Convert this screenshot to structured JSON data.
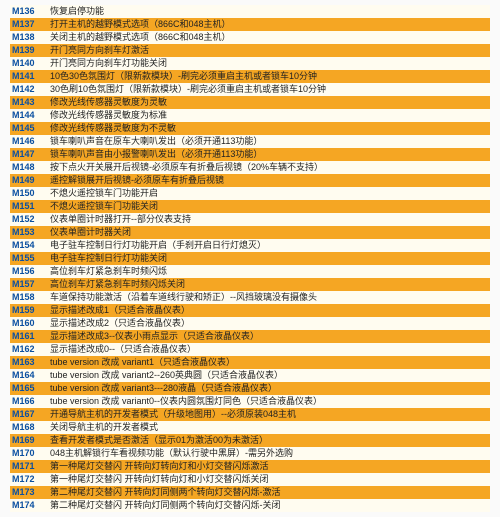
{
  "colors": {
    "alt_a": "#f5a623",
    "alt_b": "#fffcf0",
    "code": "#0a4fa0",
    "text": "#222222"
  },
  "rows": [
    {
      "code": "M136",
      "desc": "恢复启停功能"
    },
    {
      "code": "M137",
      "desc": "打开主机的越野模式选项（866C和048主机）"
    },
    {
      "code": "M138",
      "desc": "关闭主机的越野模式选项（866C和048主机）"
    },
    {
      "code": "M139",
      "desc": "开门亮同方向刹车灯激活"
    },
    {
      "code": "M140",
      "desc": "开门亮同方向刹车灯功能关闭"
    },
    {
      "code": "M141",
      "desc": "10色30色氛围灯（限新款模块）-刷完必须重启主机或者锁车10分钟"
    },
    {
      "code": "M142",
      "desc": "30色刷10色氛围灯（限新款模块）-刷完必须重启主机或者锁车10分钟"
    },
    {
      "code": "M143",
      "desc": "修改光线传感器灵敏度为灵敏"
    },
    {
      "code": "M144",
      "desc": "修改光线传感器灵敏度为标准"
    },
    {
      "code": "M145",
      "desc": "修改光线传感器灵敏度为不灵敏"
    },
    {
      "code": "M146",
      "desc": "锁车喇叭声音在原车大喇叭发出（必须开通113功能）"
    },
    {
      "code": "M147",
      "desc": "锁车喇叭声音由小报警喇叭发出（必须开通113功能）"
    },
    {
      "code": "M148",
      "desc": "按下点火开关展开后视镜-必须原车有折叠后视镜（20%车辆不支持）"
    },
    {
      "code": "M149",
      "desc": "遥控解锁展开后视镜-必须原车有折叠后视镜"
    },
    {
      "code": "M150",
      "desc": "不熄火遥控锁车门功能开启"
    },
    {
      "code": "M151",
      "desc": "不熄火遥控锁车门功能关闭"
    },
    {
      "code": "M152",
      "desc": "仪表单圈计时器打开--部分仪表支持"
    },
    {
      "code": "M153",
      "desc": "仪表单圈计时器关闭"
    },
    {
      "code": "M154",
      "desc": "电子驻车控制日行灯功能开启（手刹开启日行灯熄灭）"
    },
    {
      "code": "M155",
      "desc": "电子驻车控制日行灯功能关闭"
    },
    {
      "code": "M156",
      "desc": "高位刹车灯紧急刹车时频闪烁"
    },
    {
      "code": "M157",
      "desc": "高位刹车灯紧急刹车时频闪烁关闭"
    },
    {
      "code": "M158",
      "desc": "车道保持功能激活（沿着车道线行驶和矫正）--风挡玻璃没有摄像头"
    },
    {
      "code": "M159",
      "desc": "显示描述改成1（只适合液晶仪表）"
    },
    {
      "code": "M160",
      "desc": "显示描述改成2（只适合液晶仪表）"
    },
    {
      "code": "M161",
      "desc": "显示描述改成3--仪表小雨点显示（只适合液晶仪表）"
    },
    {
      "code": "M162",
      "desc": "显示描述改成0--（只适合液晶仪表）"
    },
    {
      "code": "M163",
      "desc": "tube version 改成 variant1（只适合液晶仪表）"
    },
    {
      "code": "M164",
      "desc": "tube version 改成 variant2--260英典圆（只适合液晶仪表）"
    },
    {
      "code": "M165",
      "desc": "tube version 改成 variant3---280液晶（只适合液晶仪表）"
    },
    {
      "code": "M166",
      "desc": "tube version 改成 variant0--仪表内圆氛围灯同色（只适合液晶仪表）"
    },
    {
      "code": "M167",
      "desc": "开通导航主机的开发者模式（升级地图用）--必须原装048主机"
    },
    {
      "code": "M168",
      "desc": "关闭导航主机的开发者模式"
    },
    {
      "code": "M169",
      "desc": "查看开发者模式是否激活（显示01为激活00为未激活）"
    },
    {
      "code": "M170",
      "desc": "048主机解锁行车看视频功能（默认行驶中黑屏）-需另外选购"
    },
    {
      "code": "M171",
      "desc": "第一种尾灯交替闪  开转向灯转向灯和小灯交替闪烁激活"
    },
    {
      "code": "M172",
      "desc": "第一种尾灯交替闪  开转向灯转向灯和小灯交替闪烁关闭"
    },
    {
      "code": "M173",
      "desc": "第二种尾灯交替闪  开转向灯同侧两个转向灯交替闪烁-激活"
    },
    {
      "code": "M174",
      "desc": "第二种尾灯交替闪  开转向灯同侧两个转向灯交替闪烁-关闭"
    }
  ]
}
